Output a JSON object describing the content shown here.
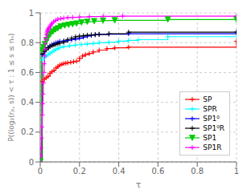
{
  "chart_data": {
    "type": "line",
    "line_style": "step",
    "x_label": "τ",
    "y_label": "P((log₂(rₚ, s)) < τ : 1 ≤ s ≤ nₛ)",
    "xlim": [
      0,
      1.0
    ],
    "ylim": [
      0,
      1.0
    ],
    "xticks": [
      0,
      0.2,
      0.4,
      0.6,
      0.8,
      1
    ],
    "yticks": [
      0,
      0.2,
      0.4,
      0.6,
      0.8,
      1
    ],
    "grid": true,
    "legend": "lower right",
    "series": [
      {
        "name": "SP",
        "color": "#ff0000",
        "marker": "plus",
        "x": [
          0.0,
          0.01,
          0.02,
          0.03,
          0.04,
          0.05,
          0.06,
          0.07,
          0.08,
          0.09,
          0.1,
          0.11,
          0.12,
          0.13,
          0.14,
          0.155,
          0.17,
          0.185,
          0.2,
          0.215,
          0.23,
          0.25,
          0.27,
          0.3,
          0.34,
          0.38,
          0.45,
          1.0
        ],
        "values": [
          0.0,
          0.54,
          0.555,
          0.565,
          0.575,
          0.595,
          0.605,
          0.615,
          0.63,
          0.64,
          0.65,
          0.655,
          0.66,
          0.662,
          0.665,
          0.668,
          0.672,
          0.676,
          0.695,
          0.71,
          0.72,
          0.728,
          0.738,
          0.75,
          0.76,
          0.765,
          0.77,
          0.81
        ]
      },
      {
        "name": "SPR",
        "color": "#00ffff",
        "marker": "plus",
        "x": [
          0.0,
          0.01,
          0.02,
          0.03,
          0.04,
          0.05,
          0.06,
          0.07,
          0.08,
          0.09,
          0.1,
          0.12,
          0.15,
          0.18,
          0.21,
          0.24,
          0.27,
          0.3,
          0.35,
          0.4,
          0.45,
          0.5,
          0.65,
          1.0
        ],
        "values": [
          0.0,
          0.685,
          0.7,
          0.71,
          0.72,
          0.73,
          0.738,
          0.748,
          0.755,
          0.76,
          0.768,
          0.775,
          0.78,
          0.785,
          0.788,
          0.792,
          0.795,
          0.8,
          0.803,
          0.81,
          0.815,
          0.82,
          0.84,
          0.87
        ]
      },
      {
        "name": "SP1⁰",
        "color": "#0000ff",
        "marker": "plus",
        "x": [
          0.0,
          0.01,
          0.02,
          0.03,
          0.04,
          0.05,
          0.06,
          0.07,
          0.08,
          0.09,
          0.1,
          0.12,
          0.14,
          0.16,
          0.18,
          0.2,
          0.22,
          0.24,
          0.26,
          0.28,
          0.3,
          0.35,
          0.45,
          1.0
        ],
        "values": [
          0.0,
          0.72,
          0.738,
          0.754,
          0.768,
          0.778,
          0.786,
          0.793,
          0.798,
          0.803,
          0.808,
          0.812,
          0.816,
          0.82,
          0.824,
          0.83,
          0.838,
          0.845,
          0.85,
          0.853,
          0.855,
          0.857,
          0.86,
          0.87
        ]
      },
      {
        "name": "SP1⁰R",
        "color": "#000000",
        "marker": "plus",
        "x": [
          0.0,
          0.01,
          0.02,
          0.03,
          0.04,
          0.05,
          0.06,
          0.07,
          0.08,
          0.09,
          0.1,
          0.12,
          0.14,
          0.16,
          0.18,
          0.2,
          0.22,
          0.24,
          0.26,
          0.28,
          0.3,
          0.35,
          0.45,
          1.0
        ],
        "values": [
          0.0,
          0.725,
          0.74,
          0.752,
          0.765,
          0.775,
          0.78,
          0.785,
          0.79,
          0.793,
          0.797,
          0.805,
          0.82,
          0.83,
          0.84,
          0.844,
          0.847,
          0.85,
          0.852,
          0.854,
          0.856,
          0.86,
          0.87,
          0.87
        ]
      },
      {
        "name": "SP1",
        "color": "#00cc00",
        "marker": "triangle_down",
        "x": [
          0.0,
          0.008,
          0.016,
          0.024,
          0.032,
          0.042,
          0.053,
          0.065,
          0.078,
          0.09,
          0.105,
          0.125,
          0.145,
          0.165,
          0.185,
          0.21,
          0.24,
          0.275,
          0.32,
          0.38,
          0.65,
          1.0
        ],
        "values": [
          0.0,
          0.75,
          0.77,
          0.79,
          0.815,
          0.84,
          0.862,
          0.875,
          0.888,
          0.896,
          0.908,
          0.915,
          0.92,
          0.924,
          0.928,
          0.935,
          0.94,
          0.944,
          0.948,
          0.95,
          0.955,
          0.955
        ]
      },
      {
        "name": "SP1R",
        "color": "#ff00ff",
        "marker": "plus",
        "x": [
          0.0,
          0.002,
          0.004,
          0.006,
          0.008,
          0.01,
          0.012,
          0.014,
          0.016,
          0.018,
          0.02,
          0.022,
          0.024,
          0.026,
          0.028,
          0.03,
          0.032,
          0.034,
          0.036,
          0.038,
          0.04,
          0.042,
          0.045,
          0.05,
          0.055,
          0.06,
          0.068,
          0.078,
          0.09,
          0.105,
          0.12,
          0.14,
          0.165,
          0.2,
          0.25,
          0.32,
          0.42,
          1.0
        ],
        "values": [
          0.0,
          0.04,
          0.095,
          0.16,
          0.235,
          0.315,
          0.39,
          0.455,
          0.53,
          0.6,
          0.658,
          0.71,
          0.755,
          0.792,
          0.818,
          0.836,
          0.852,
          0.865,
          0.875,
          0.882,
          0.888,
          0.893,
          0.9,
          0.91,
          0.92,
          0.93,
          0.94,
          0.95,
          0.958,
          0.962,
          0.965,
          0.968,
          0.97,
          0.972,
          0.975,
          0.977,
          0.978,
          0.978
        ]
      }
    ]
  }
}
